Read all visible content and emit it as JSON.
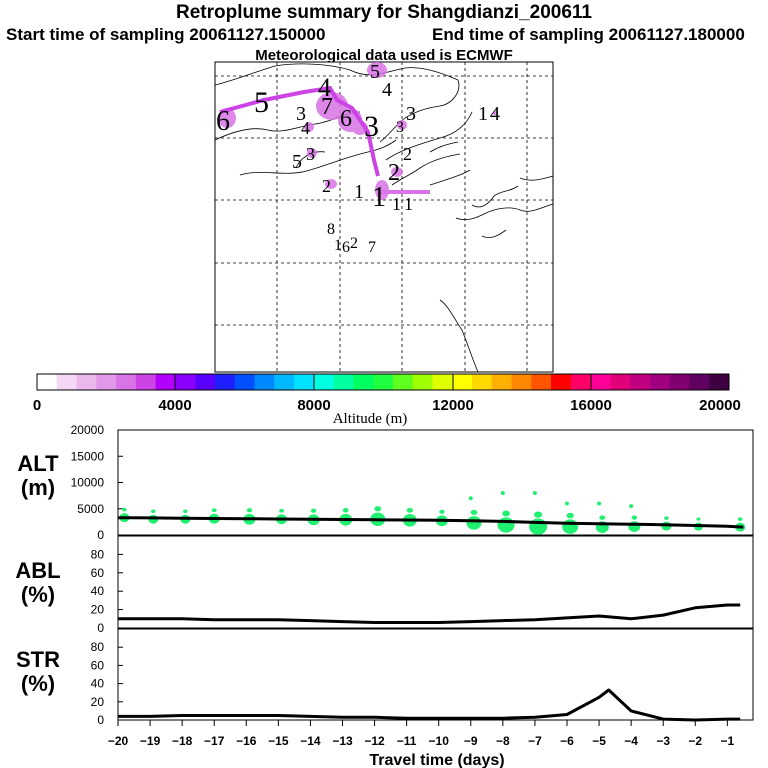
{
  "header": {
    "title": "Retroplume summary for Shangdianzi_200611",
    "start_label": "Start time of sampling 20061127.150000",
    "end_label": "End time of sampling 20061127.180000",
    "met_label": "Meteorological data used is ECMWF"
  },
  "map": {
    "trajectory_labels": [
      {
        "t": "5"
      },
      {
        "t": "4"
      },
      {
        "t": "4"
      },
      {
        "t": "5"
      },
      {
        "t": "6"
      },
      {
        "t": "3"
      },
      {
        "t": "4"
      },
      {
        "t": "7"
      },
      {
        "t": "6"
      },
      {
        "t": "3"
      },
      {
        "t": "3"
      },
      {
        "t": "3"
      },
      {
        "t": "1"
      },
      {
        "t": "4"
      },
      {
        "t": "5"
      },
      {
        "t": "3"
      },
      {
        "t": "2"
      },
      {
        "t": "2"
      },
      {
        "t": "2"
      },
      {
        "t": "1"
      },
      {
        "t": "1"
      },
      {
        "t": "1"
      },
      {
        "t": "1"
      },
      {
        "t": "8"
      },
      {
        "t": "1"
      },
      {
        "t": "6"
      },
      {
        "t": "2"
      },
      {
        "t": "7"
      }
    ]
  },
  "colorbar": {
    "ticks": [
      "0",
      "4000",
      "8000",
      "12000",
      "16000",
      "20000"
    ],
    "label": "Altitude (m)",
    "colors": [
      "#ffffff",
      "#f5d8f5",
      "#ecb8ec",
      "#e298e8",
      "#d874e6",
      "#cc44e6",
      "#b400ff",
      "#8c00ff",
      "#5a00ff",
      "#2020ff",
      "#0050ff",
      "#0088ff",
      "#00b8ff",
      "#00e0ff",
      "#00ffe0",
      "#00ffa0",
      "#00ff60",
      "#20ff40",
      "#60ff20",
      "#a0ff00",
      "#e0ff00",
      "#ffff00",
      "#ffd800",
      "#ffb000",
      "#ff8800",
      "#ff5500",
      "#ff0000",
      "#ff0066",
      "#ff0099",
      "#e0007a",
      "#c00080",
      "#a00080",
      "#800070",
      "#600060",
      "#3e0040"
    ]
  },
  "chart_data": [
    {
      "type": "line",
      "name": "ALT",
      "ylabel": "ALT\n(m)",
      "ylabel_lines": [
        "ALT",
        "(m)"
      ],
      "ylim": [
        0,
        20000
      ],
      "yticks": [
        "0",
        "5000",
        "10000",
        "15000",
        "20000"
      ],
      "x": [
        -20,
        -19,
        -18,
        -17,
        -16,
        -15,
        -14,
        -13,
        -12,
        -11,
        -10,
        -9,
        -8,
        -7,
        -6,
        -5,
        -4,
        -3,
        -2,
        -1,
        -0.5
      ],
      "values": [
        3300,
        3250,
        3200,
        3150,
        3100,
        3050,
        3000,
        2950,
        2900,
        2850,
        2800,
        2700,
        2600,
        2400,
        2250,
        2150,
        2050,
        1950,
        1800,
        1650,
        1500
      ],
      "markers": [
        {
          "x": -19.8,
          "y": 3300,
          "r": 1.0
        },
        {
          "x": -18.9,
          "y": 3000,
          "r": 1.0
        },
        {
          "x": -17.9,
          "y": 3000,
          "r": 1.0
        },
        {
          "x": -17.0,
          "y": 3100,
          "r": 1.1
        },
        {
          "x": -15.9,
          "y": 3000,
          "r": 1.2
        },
        {
          "x": -14.9,
          "y": 3000,
          "r": 1.1
        },
        {
          "x": -13.9,
          "y": 2900,
          "r": 1.2
        },
        {
          "x": -12.9,
          "y": 2900,
          "r": 1.3
        },
        {
          "x": -11.9,
          "y": 3000,
          "r": 1.5
        },
        {
          "x": -10.9,
          "y": 2800,
          "r": 1.4
        },
        {
          "x": -9.9,
          "y": 2700,
          "r": 1.2
        },
        {
          "x": -8.9,
          "y": 2300,
          "r": 1.5
        },
        {
          "x": -7.9,
          "y": 1900,
          "r": 1.7
        },
        {
          "x": -6.9,
          "y": 1600,
          "r": 1.8
        },
        {
          "x": -5.9,
          "y": 1600,
          "r": 1.6
        },
        {
          "x": -4.9,
          "y": 1500,
          "r": 1.3
        },
        {
          "x": -3.9,
          "y": 1600,
          "r": 1.2
        },
        {
          "x": -2.9,
          "y": 1700,
          "r": 1.0
        },
        {
          "x": -1.9,
          "y": 1600,
          "r": 0.9
        },
        {
          "x": -0.6,
          "y": 1500,
          "r": 1.0
        }
      ],
      "upper_dots": [
        {
          "x": -9.0,
          "y": 7000
        },
        {
          "x": -8.0,
          "y": 8000
        },
        {
          "x": -7.0,
          "y": 8000
        },
        {
          "x": -6.0,
          "y": 6000
        },
        {
          "x": -5.0,
          "y": 6000
        },
        {
          "x": -4.0,
          "y": 5500
        }
      ]
    },
    {
      "type": "line",
      "name": "ABL",
      "ylabel_lines": [
        "ABL",
        "(%)"
      ],
      "ylim": [
        0,
        100
      ],
      "yticks": [
        "0",
        "20",
        "40",
        "60",
        "80"
      ],
      "x": [
        -20,
        -19,
        -18,
        -17,
        -16,
        -15,
        -14,
        -13,
        -12,
        -11,
        -10,
        -9,
        -8,
        -7,
        -6,
        -5,
        -4,
        -3,
        -2,
        -1,
        -0.6
      ],
      "values": [
        10,
        10,
        10,
        9,
        9,
        9,
        8,
        7,
        6,
        6,
        6,
        7,
        8,
        9,
        11,
        13,
        10,
        14,
        22,
        25,
        25
      ]
    },
    {
      "type": "line",
      "name": "STR",
      "ylabel_lines": [
        "STR",
        "(%)"
      ],
      "ylim": [
        0,
        100
      ],
      "yticks": [
        "0",
        "20",
        "40",
        "60",
        "80"
      ],
      "x": [
        -20,
        -19,
        -18,
        -17,
        -16,
        -15,
        -14,
        -13,
        -12,
        -11,
        -10,
        -9,
        -8,
        -7,
        -6,
        -5,
        -4.7,
        -4,
        -3,
        -2,
        -1,
        -0.6
      ],
      "values": [
        4,
        4,
        5,
        5,
        5,
        5,
        4,
        3,
        3,
        2,
        2,
        2,
        2,
        3,
        6,
        25,
        33,
        10,
        1,
        0,
        1,
        1
      ]
    }
  ],
  "xaxis": {
    "label": "Travel time (days)",
    "ticks": [
      "−20",
      "−19",
      "−18",
      "−17",
      "−16",
      "−15",
      "−14",
      "−13",
      "−12",
      "−11",
      "−10",
      "−9",
      "−8",
      "−7",
      "−6",
      "−5",
      "−4",
      "−3",
      "−2",
      "−1"
    ]
  }
}
